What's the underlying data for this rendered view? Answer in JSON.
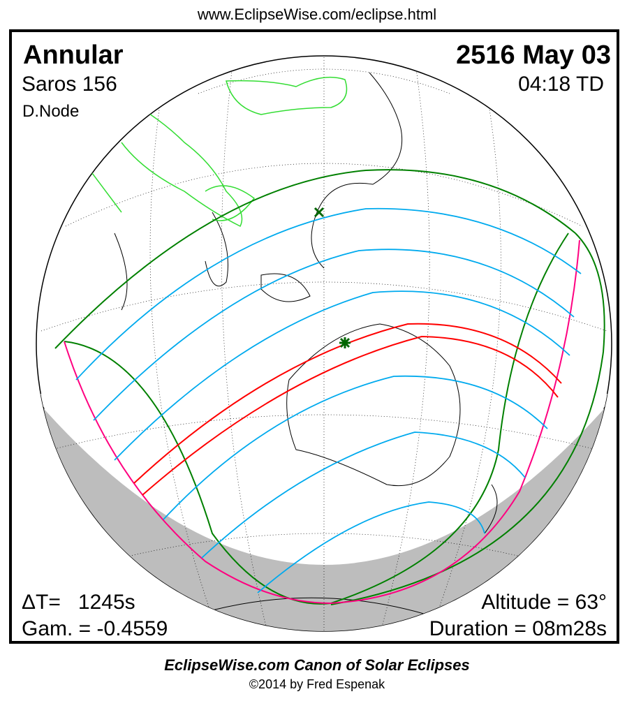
{
  "header_url": "www.EclipseWise.com/eclipse.html",
  "eclipse": {
    "type": "Annular",
    "saros": "Saros 156",
    "node": "D.Node",
    "date": "2516 May 03",
    "time": "04:18 TD",
    "delta_t": "ΔT=   1245s",
    "gamma": "Gam. = -0.4559",
    "altitude": "Altitude = 63°",
    "duration": "Duration = 08m28s"
  },
  "colors": {
    "penumbral_limits": "#008000",
    "central_path": "#ff0000",
    "partial_contours": "#00aaee",
    "rise_set": "#ff0080",
    "borders": "#33dd33",
    "night": "#bdbdbd"
  },
  "footer": {
    "title": "EclipseWise.com Canon of Solar Eclipses",
    "copyright": "©2014 by Fred Espenak"
  }
}
